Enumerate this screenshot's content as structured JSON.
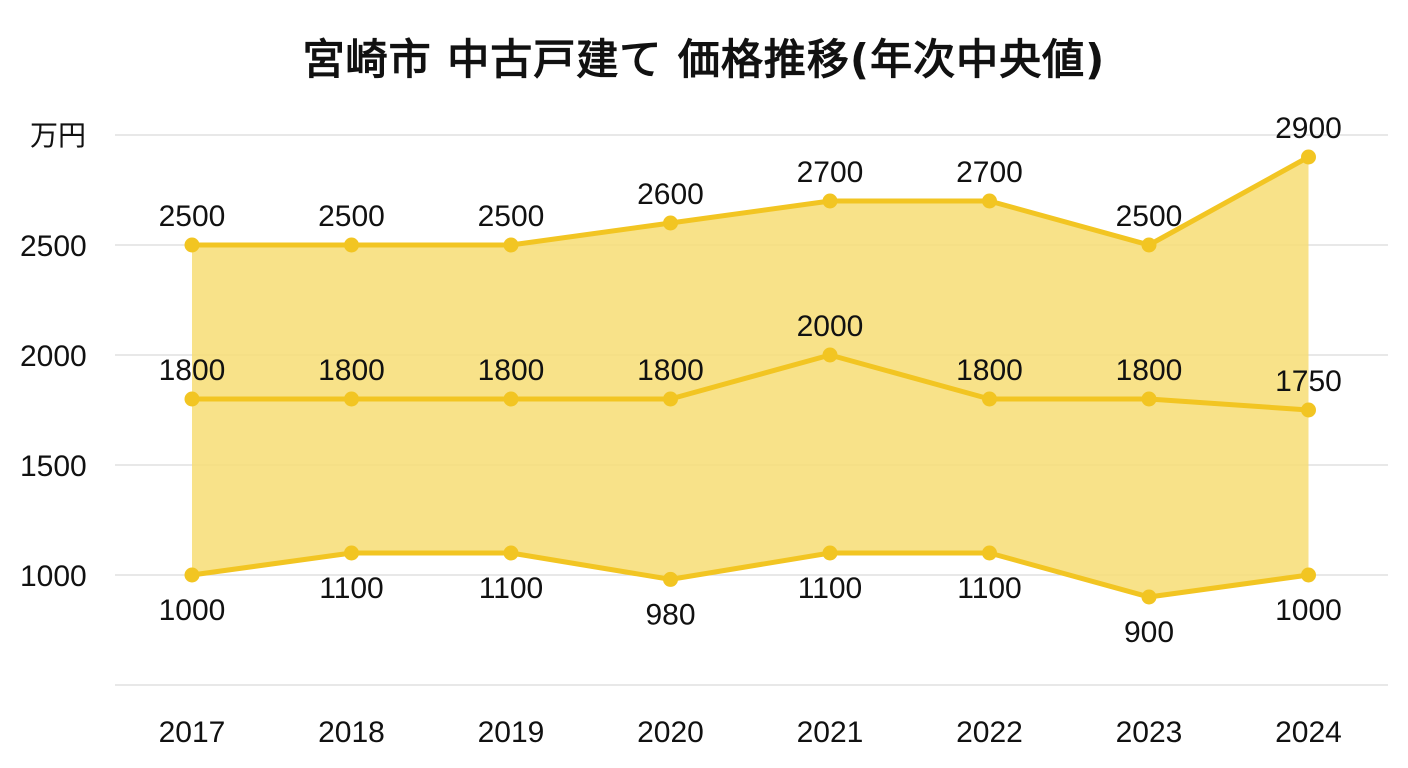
{
  "chart_data": {
    "type": "area",
    "title": "宮崎市 中古戸建て 価格推移(年次中央値)",
    "y_unit": "万円",
    "categories": [
      "2017",
      "2018",
      "2019",
      "2020",
      "2021",
      "2022",
      "2023",
      "2024"
    ],
    "series": [
      {
        "values": [
          2500,
          2500,
          2500,
          2600,
          2700,
          2700,
          2500,
          2900
        ]
      },
      {
        "values": [
          1800,
          1800,
          1800,
          1800,
          2000,
          1800,
          1800,
          1750
        ]
      },
      {
        "values": [
          1000,
          1100,
          1100,
          980,
          1100,
          1100,
          900,
          1000
        ]
      }
    ],
    "yticks": [
      1000,
      1500,
      2000,
      2500
    ],
    "ylim": [
      500,
      3000
    ],
    "grid": true,
    "colors": {
      "line": "#f2c522",
      "fill": "#f7dd74",
      "grid": "#d9d9d9"
    }
  }
}
